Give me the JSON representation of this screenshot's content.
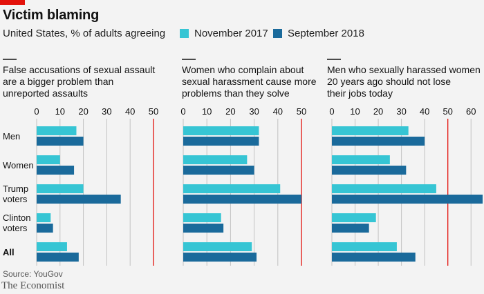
{
  "header": {
    "title": "Victim blaming",
    "subtitle": "United States, % of adults agreeing"
  },
  "footer": {
    "source": "Source: YouGov",
    "brand": "The Economist"
  },
  "colors": {
    "nov2017": "#36c5d4",
    "sep2018": "#1a6a9b",
    "redline": "#e3120b",
    "grid": "#c2c2c2"
  },
  "chart_data": {
    "type": "bar",
    "orientation": "horizontal",
    "categories": [
      {
        "label_lines": [
          "Men"
        ],
        "bold": false
      },
      {
        "label_lines": [
          "Women"
        ],
        "bold": false
      },
      {
        "label_lines": [
          "Trump",
          "voters"
        ],
        "bold": false
      },
      {
        "label_lines": [
          "Clinton",
          "voters"
        ],
        "bold": false
      },
      {
        "label_lines": [
          "All"
        ],
        "bold": true
      }
    ],
    "legend": [
      {
        "name": "November 2017",
        "color": "#36c5d4"
      },
      {
        "name": "September 2018",
        "color": "#1a6a9b"
      }
    ],
    "legend_position": "top",
    "grid": true,
    "panels": [
      {
        "title_lines": [
          "False accusations of sexual assault",
          "are a bigger problem than",
          "unreported assaults"
        ],
        "xlim": [
          0,
          50
        ],
        "ticks": [
          0,
          10,
          20,
          30,
          40,
          50
        ],
        "red_line_at": 50,
        "series": [
          {
            "name": "November 2017",
            "values": [
              17,
              10,
              20,
              6,
              13
            ]
          },
          {
            "name": "September 2018",
            "values": [
              20,
              16,
              36,
              7,
              18
            ]
          }
        ]
      },
      {
        "title_lines": [
          "Women who complain about",
          "sexual harassment cause more",
          "problems than they solve"
        ],
        "xlim": [
          0,
          50
        ],
        "ticks": [
          0,
          10,
          20,
          30,
          40,
          50
        ],
        "red_line_at": 50,
        "series": [
          {
            "name": "November 2017",
            "values": [
              32,
              27,
              41,
              16,
              29
            ]
          },
          {
            "name": "September 2018",
            "values": [
              32,
              30,
              50,
              17,
              31
            ]
          }
        ]
      },
      {
        "title_lines": [
          "Men who sexually harassed women",
          "20 years ago should not lose",
          "their jobs today"
        ],
        "xlim": [
          0,
          65
        ],
        "ticks": [
          0,
          10,
          20,
          30,
          40,
          50,
          60
        ],
        "red_line_at": 50,
        "series": [
          {
            "name": "November 2017",
            "values": [
              33,
              25,
              45,
              19,
              28
            ]
          },
          {
            "name": "September 2018",
            "values": [
              40,
              32,
              65,
              16,
              36
            ]
          }
        ]
      }
    ]
  }
}
